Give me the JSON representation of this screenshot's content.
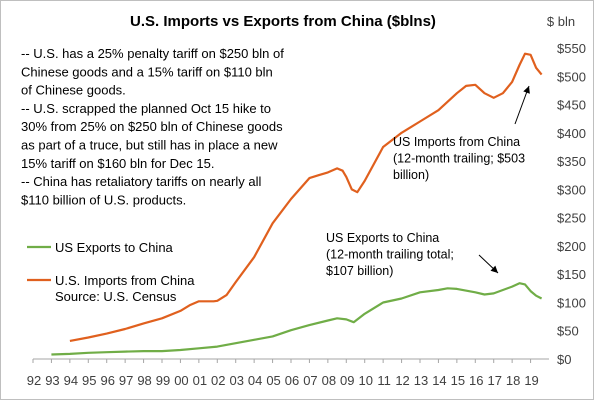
{
  "chart_data": {
    "type": "line",
    "title": "U.S. Imports vs Exports from China ($blns)",
    "ylabel": "$ bln",
    "ylim": [
      0,
      550
    ],
    "y_ticks": [
      "$0",
      "$50",
      "$100",
      "$150",
      "$200",
      "$250",
      "$300",
      "$350",
      "$400",
      "$450",
      "$500",
      "$550"
    ],
    "x_ticks": [
      "92",
      "93",
      "94",
      "95",
      "96",
      "97",
      "98",
      "99",
      "00",
      "01",
      "02",
      "03",
      "04",
      "05",
      "06",
      "07",
      "08",
      "09",
      "10",
      "11",
      "12",
      "13",
      "14",
      "15",
      "16",
      "17",
      "18",
      "19"
    ],
    "xlim": [
      1992,
      2020
    ],
    "grid": false,
    "legend_position": "left",
    "series": [
      {
        "name": "US Exports to China",
        "color": "#70ad47",
        "x": [
          1993.0,
          1994.0,
          1995.0,
          1996.0,
          1997.0,
          1998.0,
          1999.0,
          2000.0,
          2001.0,
          2002.0,
          2003.0,
          2004.0,
          2005.0,
          2006.0,
          2007.0,
          2008.0,
          2008.5,
          2009.0,
          2009.4,
          2010.0,
          2011.0,
          2012.0,
          2013.0,
          2014.0,
          2014.5,
          2015.0,
          2016.0,
          2016.5,
          2017.0,
          2018.0,
          2018.4,
          2018.7,
          2019.0,
          2019.3,
          2019.6
        ],
        "y": [
          8,
          9,
          11,
          12,
          13,
          14,
          14,
          16,
          19,
          22,
          28,
          34,
          40,
          51,
          60,
          68,
          72,
          70,
          65,
          80,
          100,
          107,
          118,
          122,
          125,
          124,
          118,
          114,
          116,
          128,
          134,
          132,
          120,
          112,
          107
        ]
      },
      {
        "name": "U.S. Imports from China",
        "color": "#e0601e",
        "x": [
          1994.0,
          1995.0,
          1996.0,
          1997.0,
          1998.0,
          1999.0,
          2000.0,
          2000.5,
          2001.0,
          2001.8,
          2002.0,
          2002.5,
          2003.0,
          2004.0,
          2005.0,
          2006.0,
          2007.0,
          2007.5,
          2008.0,
          2008.5,
          2008.8,
          2009.0,
          2009.3,
          2009.6,
          2010.0,
          2011.0,
          2012.0,
          2013.0,
          2014.0,
          2015.0,
          2015.5,
          2016.0,
          2016.5,
          2017.0,
          2017.5,
          2018.0,
          2018.4,
          2018.7,
          2019.0,
          2019.3,
          2019.6
        ],
        "y": [
          32,
          38,
          45,
          53,
          63,
          72,
          85,
          95,
          102,
          102,
          103,
          113,
          136,
          180,
          240,
          283,
          320,
          325,
          330,
          337,
          333,
          322,
          300,
          295,
          315,
          375,
          400,
          420,
          440,
          470,
          483,
          485,
          470,
          462,
          470,
          490,
          520,
          540,
          538,
          515,
          503
        ]
      }
    ],
    "annotations": [
      {
        "label": "US Imports from China (12-month trailing; $503 billion)",
        "lines": [
          "US Imports from China",
          "(12-month trailing; $503",
          "billion)"
        ]
      },
      {
        "label": "US Exports to China (12-month trailing total; $107 billion)",
        "lines": [
          "US Exports to China",
          "(12-month trailing total;",
          "$107 billion)"
        ]
      }
    ],
    "note_lines": [
      "-- U.S. has a 25% penalty tariff on $250 bln of",
      "Chinese goods and a 15% tariff on $110 bln",
      "of Chinese goods.",
      "-- U.S. scrapped the planned Oct 15 hike to",
      "30% from 25% on $250 bln of Chinese goods",
      "as part of a truce, but still has in place a new",
      "15% tariff on $160 bln for Dec 15.",
      "-- China has retaliatory tariffs on nearly all",
      "$110 billion of U.S. products."
    ],
    "source": "Source:  U.S. Census"
  }
}
